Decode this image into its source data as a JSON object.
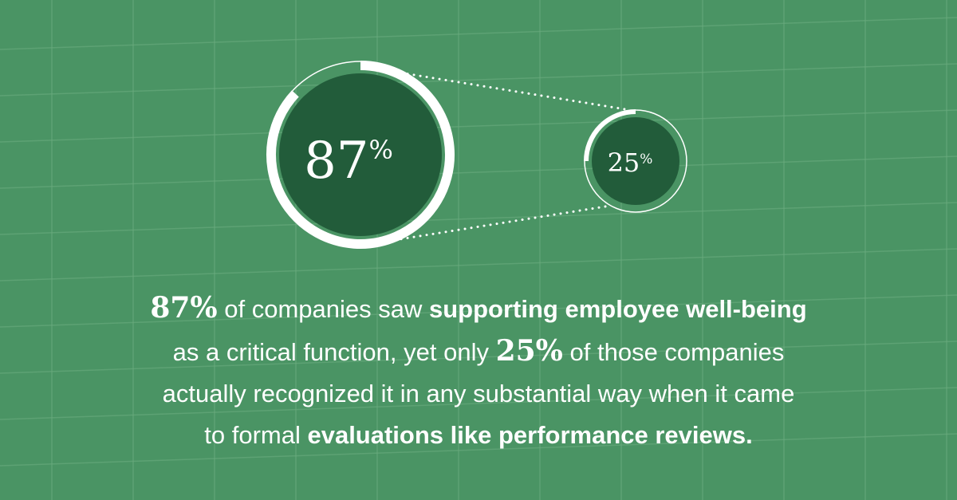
{
  "colors": {
    "background": "#4a9464",
    "circle_fill": "#225c3a",
    "ring": "#ffffff",
    "grid": "#6aab7f"
  },
  "chart_data": {
    "type": "radial-progress",
    "items": [
      {
        "label": "87",
        "suffix": "%",
        "value": 87
      },
      {
        "label": "25",
        "suffix": "%",
        "value": 25
      }
    ]
  },
  "caption": {
    "line1": {
      "num": "87%",
      "text1": " of companies saw ",
      "bold": "supporting employee well-being"
    },
    "line2": {
      "text1": "as a critical function, yet only ",
      "num": "25%",
      "text2": " of those companies"
    },
    "line3": {
      "text1": "actually recognized it in any substantial way when it came"
    },
    "line4": {
      "text1": "to formal ",
      "bold": "evaluations like performance reviews."
    }
  }
}
